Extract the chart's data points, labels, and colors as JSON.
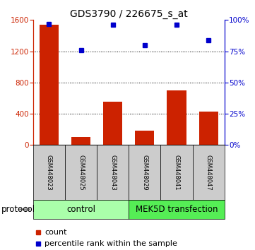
{
  "title": "GDS3790 / 226675_s_at",
  "samples": [
    "GSM448023",
    "GSM448025",
    "GSM448043",
    "GSM448029",
    "GSM448041",
    "GSM448047"
  ],
  "counts": [
    1540,
    100,
    550,
    180,
    700,
    430
  ],
  "percentiles": [
    97,
    76,
    96,
    80,
    96,
    84
  ],
  "ylim_left": [
    0,
    1600
  ],
  "ylim_right": [
    0,
    100
  ],
  "yticks_left": [
    0,
    400,
    800,
    1200,
    1600
  ],
  "yticks_right": [
    0,
    25,
    50,
    75,
    100
  ],
  "bar_color": "#cc2200",
  "dot_color": "#0000cc",
  "control_color": "#aaffaa",
  "transfection_color": "#55ee55",
  "sample_bg_color": "#cccccc",
  "control_label": "control",
  "transfection_label": "MEK5D transfection",
  "protocol_label": "protocol",
  "legend_bar_label": "count",
  "legend_dot_label": "percentile rank within the sample",
  "n_control": 3,
  "n_transfection": 3,
  "gridline_values": [
    400,
    800,
    1200
  ]
}
